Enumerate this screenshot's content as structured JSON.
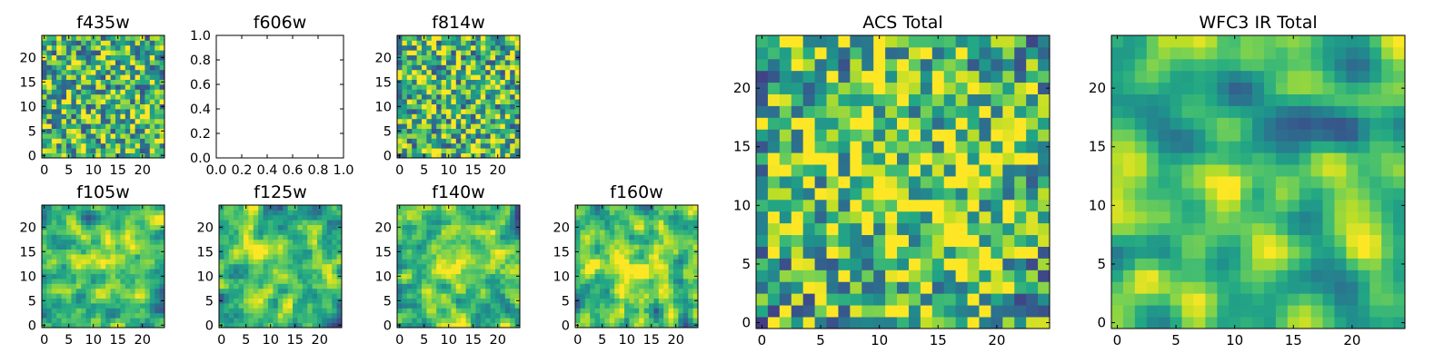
{
  "chart_data": [
    {
      "type": "heatmap",
      "title": "f435w",
      "xticks": [
        "0",
        "5",
        "10",
        "15",
        "20"
      ],
      "yticks": [
        "0",
        "5",
        "10",
        "15",
        "20"
      ],
      "size": 25,
      "xlim": [
        -0.5,
        24.5
      ],
      "ylim": [
        -0.5,
        24.5
      ],
      "colormap": "viridis",
      "smoothness": 0,
      "seed": 11,
      "bias": 0.0
    },
    {
      "type": "heatmap",
      "title": "f606w",
      "empty": true,
      "xticks": [
        "0.0",
        "0.2",
        "0.4",
        "0.6",
        "0.8",
        "1.0"
      ],
      "yticks": [
        "0.0",
        "0.2",
        "0.4",
        "0.6",
        "0.8",
        "1.0"
      ],
      "xlim": [
        0,
        1
      ],
      "ylim": [
        0,
        1
      ]
    },
    {
      "type": "heatmap",
      "title": "f814w",
      "xticks": [
        "0",
        "5",
        "10",
        "15",
        "20"
      ],
      "yticks": [
        "0",
        "5",
        "10",
        "15",
        "20"
      ],
      "size": 25,
      "xlim": [
        -0.5,
        24.5
      ],
      "ylim": [
        -0.5,
        24.5
      ],
      "colormap": "viridis",
      "smoothness": 0,
      "seed": 23,
      "bias": 0.0
    },
    {
      "type": "heatmap",
      "title": "f105w",
      "xticks": [
        "0",
        "5",
        "10",
        "15",
        "20"
      ],
      "yticks": [
        "0",
        "5",
        "10",
        "15",
        "20"
      ],
      "size": 25,
      "xlim": [
        -0.5,
        24.5
      ],
      "ylim": [
        -0.5,
        24.5
      ],
      "colormap": "viridis",
      "smoothness": 1,
      "seed": 37,
      "bias": 0.15
    },
    {
      "type": "heatmap",
      "title": "f125w",
      "xticks": [
        "0",
        "5",
        "10",
        "15",
        "20"
      ],
      "yticks": [
        "0",
        "5",
        "10",
        "15",
        "20"
      ],
      "size": 25,
      "xlim": [
        -0.5,
        24.5
      ],
      "ylim": [
        -0.5,
        24.5
      ],
      "colormap": "viridis",
      "smoothness": 1,
      "seed": 41,
      "bias": 0.15
    },
    {
      "type": "heatmap",
      "title": "f140w",
      "xticks": [
        "0",
        "5",
        "10",
        "15",
        "20"
      ],
      "yticks": [
        "0",
        "5",
        "10",
        "15",
        "20"
      ],
      "size": 25,
      "xlim": [
        -0.5,
        24.5
      ],
      "ylim": [
        -0.5,
        24.5
      ],
      "colormap": "viridis",
      "smoothness": 1,
      "seed": 53,
      "bias": 0.15
    },
    {
      "type": "heatmap",
      "title": "f160w",
      "xticks": [
        "0",
        "5",
        "10",
        "15",
        "20"
      ],
      "yticks": [
        "0",
        "5",
        "10",
        "15",
        "20"
      ],
      "size": 25,
      "xlim": [
        -0.5,
        24.5
      ],
      "ylim": [
        -0.5,
        24.5
      ],
      "colormap": "viridis",
      "smoothness": 1,
      "seed": 67,
      "bias": 0.15
    },
    {
      "type": "heatmap",
      "title": "ACS Total",
      "xticks": [
        "0",
        "5",
        "10",
        "15",
        "20"
      ],
      "yticks": [
        "0",
        "5",
        "10",
        "15",
        "20"
      ],
      "size": 25,
      "xlim": [
        -0.5,
        24.5
      ],
      "ylim": [
        -0.5,
        24.5
      ],
      "colormap": "viridis",
      "smoothness": 0,
      "seed": 79,
      "bias": 0.2
    },
    {
      "type": "heatmap",
      "title": "WFC3 IR Total",
      "xticks": [
        "0",
        "5",
        "10",
        "15",
        "20"
      ],
      "yticks": [
        "0",
        "5",
        "10",
        "15",
        "20"
      ],
      "size": 25,
      "xlim": [
        -0.5,
        24.5
      ],
      "ylim": [
        -0.5,
        24.5
      ],
      "colormap": "viridis",
      "smoothness": 2,
      "seed": 97,
      "bias": 0.05
    }
  ]
}
